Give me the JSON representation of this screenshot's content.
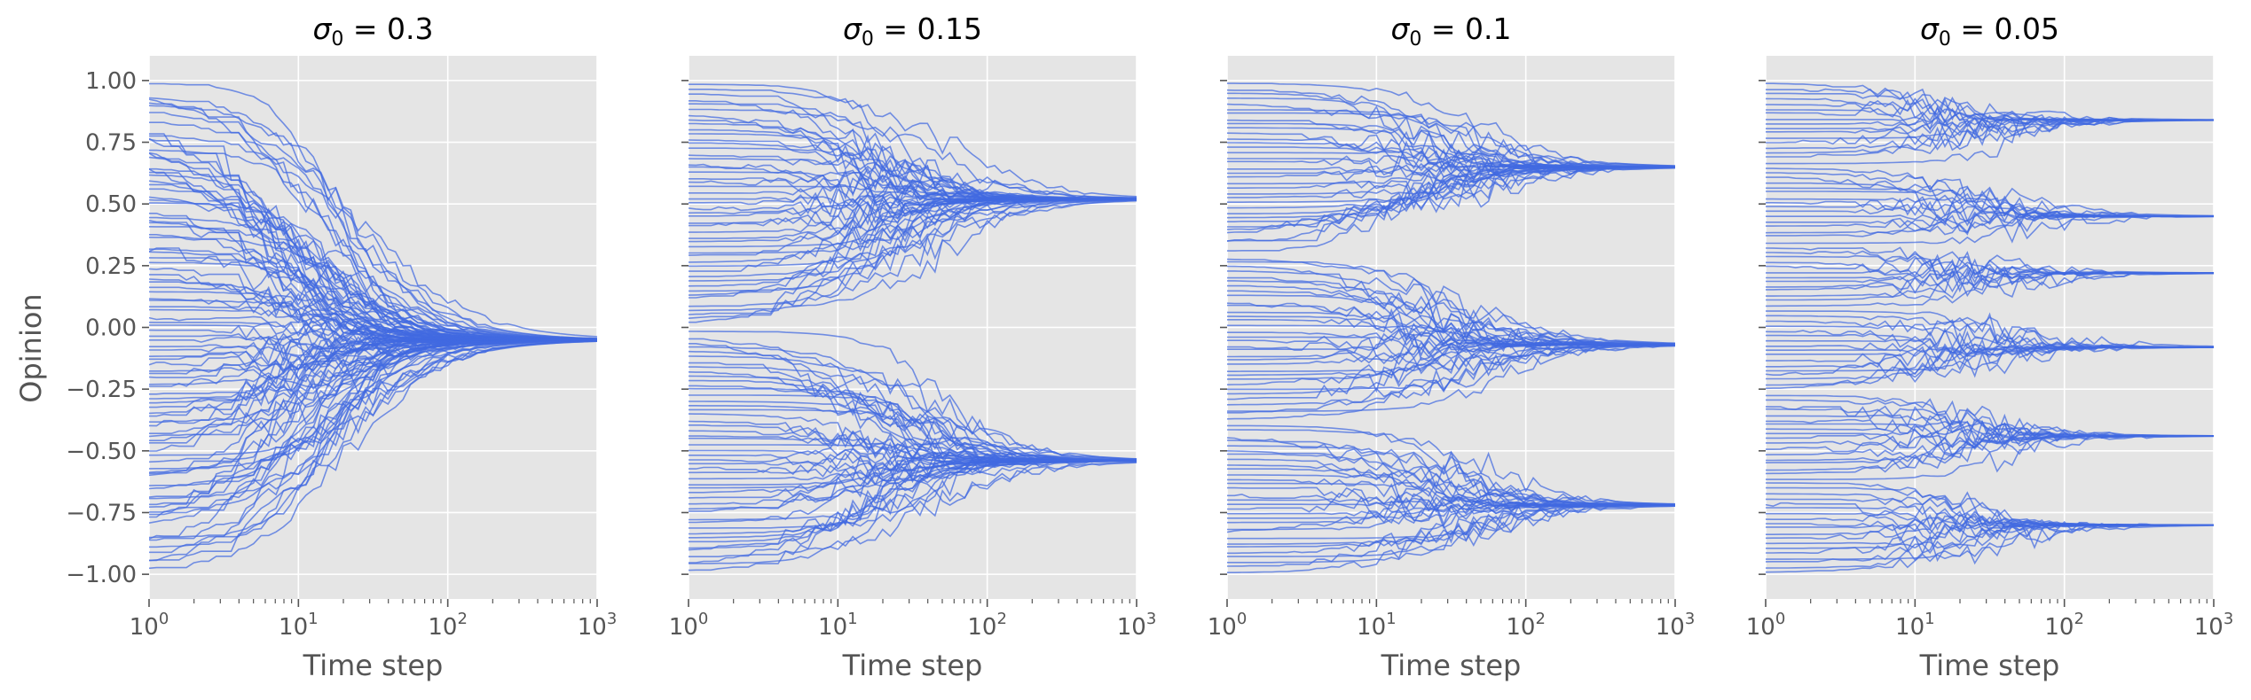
{
  "figure": {
    "ylabel": "Opinion",
    "xlabel": "Time step"
  },
  "style": {
    "background": "#E5E5E5",
    "grid": "#FFFFFF",
    "line_color": "#4169E1",
    "tick_color": "#555555"
  },
  "chart_data": [
    {
      "type": "line",
      "title_prefix": "σ",
      "title_sub": "0",
      "title_value": "0.3",
      "xlabel": "Time step",
      "ylabel": "Opinion",
      "xscale": "log",
      "xlim": [
        1,
        1000
      ],
      "ylim": [
        -1.1,
        1.1
      ],
      "grid": true,
      "n_trajectories": 100,
      "clusters": [
        -0.05
      ],
      "converge_step": 60,
      "series_summary": "100 agent opinion trajectories, initial values uniform in [-1, 1], all converging to -0.05"
    },
    {
      "type": "line",
      "title_prefix": "σ",
      "title_sub": "0",
      "title_value": "0.15",
      "xlabel": "Time step",
      "xscale": "log",
      "xlim": [
        1,
        1000
      ],
      "ylim": [
        -1.1,
        1.1
      ],
      "grid": true,
      "n_trajectories": 100,
      "clusters": [
        0.52,
        -0.54
      ],
      "converge_step": 150,
      "series_summary": "100 trajectories splitting into two clusters at 0.52 and -0.54"
    },
    {
      "type": "line",
      "title_prefix": "σ",
      "title_sub": "0",
      "title_value": "0.1",
      "xlabel": "Time step",
      "xscale": "log",
      "xlim": [
        1,
        1000
      ],
      "ylim": [
        -1.1,
        1.1
      ],
      "grid": true,
      "n_trajectories": 100,
      "clusters": [
        0.65,
        -0.07,
        -0.72
      ],
      "converge_step": 200,
      "series_summary": "100 trajectories splitting into three clusters at 0.65, -0.07 and -0.72"
    },
    {
      "type": "line",
      "title_prefix": "σ",
      "title_sub": "0",
      "title_value": "0.05",
      "xlabel": "Time step",
      "xscale": "log",
      "xlim": [
        1,
        1000
      ],
      "ylim": [
        -1.1,
        1.1
      ],
      "grid": true,
      "n_trajectories": 100,
      "clusters": [
        0.84,
        0.45,
        0.22,
        -0.08,
        -0.44,
        -0.8
      ],
      "converge_step": 150,
      "series_summary": "100 trajectories splitting into six clusters at 0.84, 0.45, 0.22, -0.08, -0.44 and -0.8"
    }
  ],
  "axes": {
    "y_ticks": [
      "1.00",
      "0.75",
      "0.50",
      "0.25",
      "0.00",
      "−0.25",
      "−0.50",
      "−0.75",
      "−1.00"
    ],
    "y_tick_values": [
      1.0,
      0.75,
      0.5,
      0.25,
      0.0,
      -0.25,
      -0.5,
      -0.75,
      -1.0
    ],
    "x_ticks": [
      {
        "base": "10",
        "exp": "0",
        "value": 1
      },
      {
        "base": "10",
        "exp": "1",
        "value": 10
      },
      {
        "base": "10",
        "exp": "2",
        "value": 100
      },
      {
        "base": "10",
        "exp": "3",
        "value": 1000
      }
    ]
  }
}
